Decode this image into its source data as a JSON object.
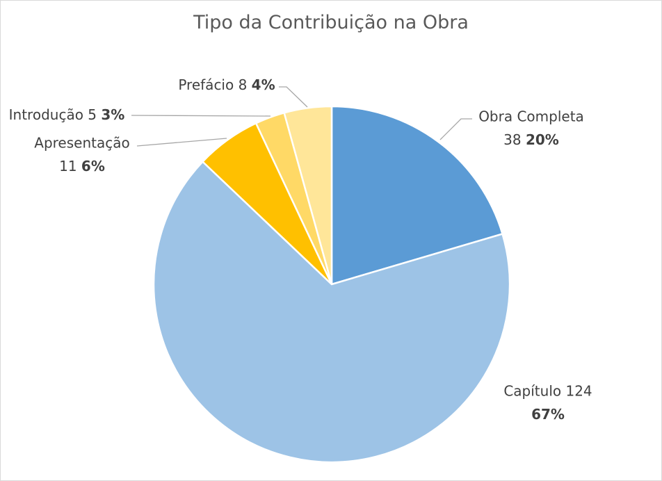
{
  "chart_data": {
    "type": "pie",
    "title": "Tipo da Contribuição na Obra",
    "slices": [
      {
        "label": "Obra Completa",
        "value": 38,
        "percent_label": "20%",
        "color": "#5b9bd5"
      },
      {
        "label": "Capítulo",
        "value": 124,
        "percent_label": "67%",
        "color": "#9dc3e6"
      },
      {
        "label": "Apresentação",
        "value": 11,
        "percent_label": "6%",
        "color": "#ffc000"
      },
      {
        "label": "Introdução",
        "value": 5,
        "percent_label": "3%",
        "color": "#ffd966"
      },
      {
        "label": "Prefácio",
        "value": 8,
        "percent_label": "4%",
        "color": "#ffe699"
      }
    ],
    "legend": "none"
  }
}
